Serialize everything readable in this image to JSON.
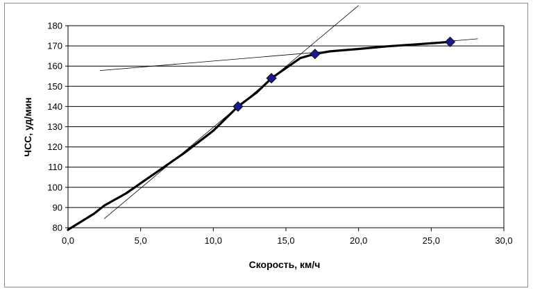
{
  "chart_data": {
    "type": "line",
    "xlabel": "Скорость, км/ч",
    "ylabel": "ЧСС, уд/мин",
    "xlim": [
      0,
      30
    ],
    "ylim": [
      80,
      180
    ],
    "x_ticks": [
      "0,0",
      "5,0",
      "10,0",
      "15,0",
      "20,0",
      "25,0",
      "30,0"
    ],
    "x_tick_values": [
      0,
      5,
      10,
      15,
      20,
      25,
      30
    ],
    "y_ticks": [
      "80",
      "90",
      "100",
      "110",
      "120",
      "130",
      "140",
      "150",
      "160",
      "170",
      "180"
    ],
    "y_tick_values": [
      80,
      90,
      100,
      110,
      120,
      130,
      140,
      150,
      160,
      170,
      180
    ],
    "grid": "horizontal",
    "legend": "none",
    "series": [
      {
        "style": "thick-line",
        "color": "#000000",
        "points": [
          [
            0.0,
            79
          ],
          [
            1.8,
            87
          ],
          [
            2.5,
            91
          ],
          [
            4.0,
            97
          ],
          [
            6.0,
            107
          ],
          [
            8.0,
            117
          ],
          [
            10.0,
            128
          ],
          [
            11.7,
            140
          ],
          [
            13.0,
            147
          ],
          [
            14.0,
            154
          ],
          [
            15.0,
            159
          ],
          [
            16.0,
            164
          ],
          [
            17.0,
            166
          ],
          [
            18.0,
            167.3
          ],
          [
            20.0,
            168.5
          ],
          [
            22.0,
            169.8
          ],
          [
            24.0,
            170.8
          ],
          [
            26.3,
            172
          ]
        ]
      },
      {
        "style": "markers",
        "marker": "diamond",
        "color": "#1a1a8c",
        "points": [
          [
            11.7,
            140
          ],
          [
            14.0,
            154
          ],
          [
            17.0,
            166
          ],
          [
            26.3,
            172
          ]
        ]
      },
      {
        "style": "thin-line",
        "color": "#000000",
        "points": [
          [
            2.5,
            84.5
          ],
          [
            20.0,
            190
          ]
        ]
      },
      {
        "style": "thin-line",
        "color": "#000000",
        "points": [
          [
            2.2,
            157.8
          ],
          [
            28.2,
            173.5
          ]
        ]
      }
    ]
  }
}
